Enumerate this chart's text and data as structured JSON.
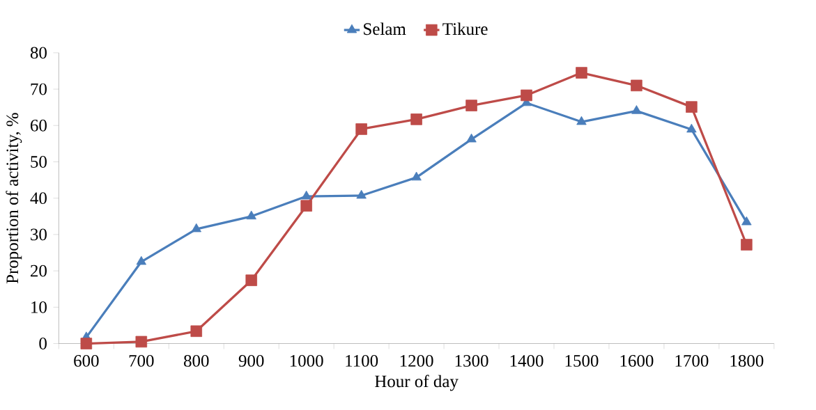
{
  "chart_data": {
    "type": "line",
    "xlabel": "Hour of day",
    "ylabel": "Proportion of activity, %",
    "categories": [
      "600",
      "700",
      "800",
      "900",
      "1000",
      "1100",
      "1200",
      "1300",
      "1400",
      "1500",
      "1600",
      "1700",
      "1800"
    ],
    "series": [
      {
        "name": "Selam",
        "color": "#4a7ebb",
        "marker": "triangle",
        "values": [
          1.7,
          22.5,
          31.5,
          35,
          40.5,
          40.7,
          45.7,
          56.2,
          66.2,
          61,
          64,
          58.9,
          33.4
        ]
      },
      {
        "name": "Tikure",
        "color": "#be4b48",
        "marker": "square",
        "values": [
          0,
          0.5,
          3.4,
          17.4,
          37.9,
          59,
          61.7,
          65.5,
          68.3,
          74.5,
          71,
          65.1,
          27.2
        ]
      }
    ],
    "ylim": [
      0,
      80
    ],
    "yticks": [
      0,
      10,
      20,
      30,
      40,
      50,
      60,
      70,
      80
    ],
    "legend": "top",
    "grid": false
  }
}
